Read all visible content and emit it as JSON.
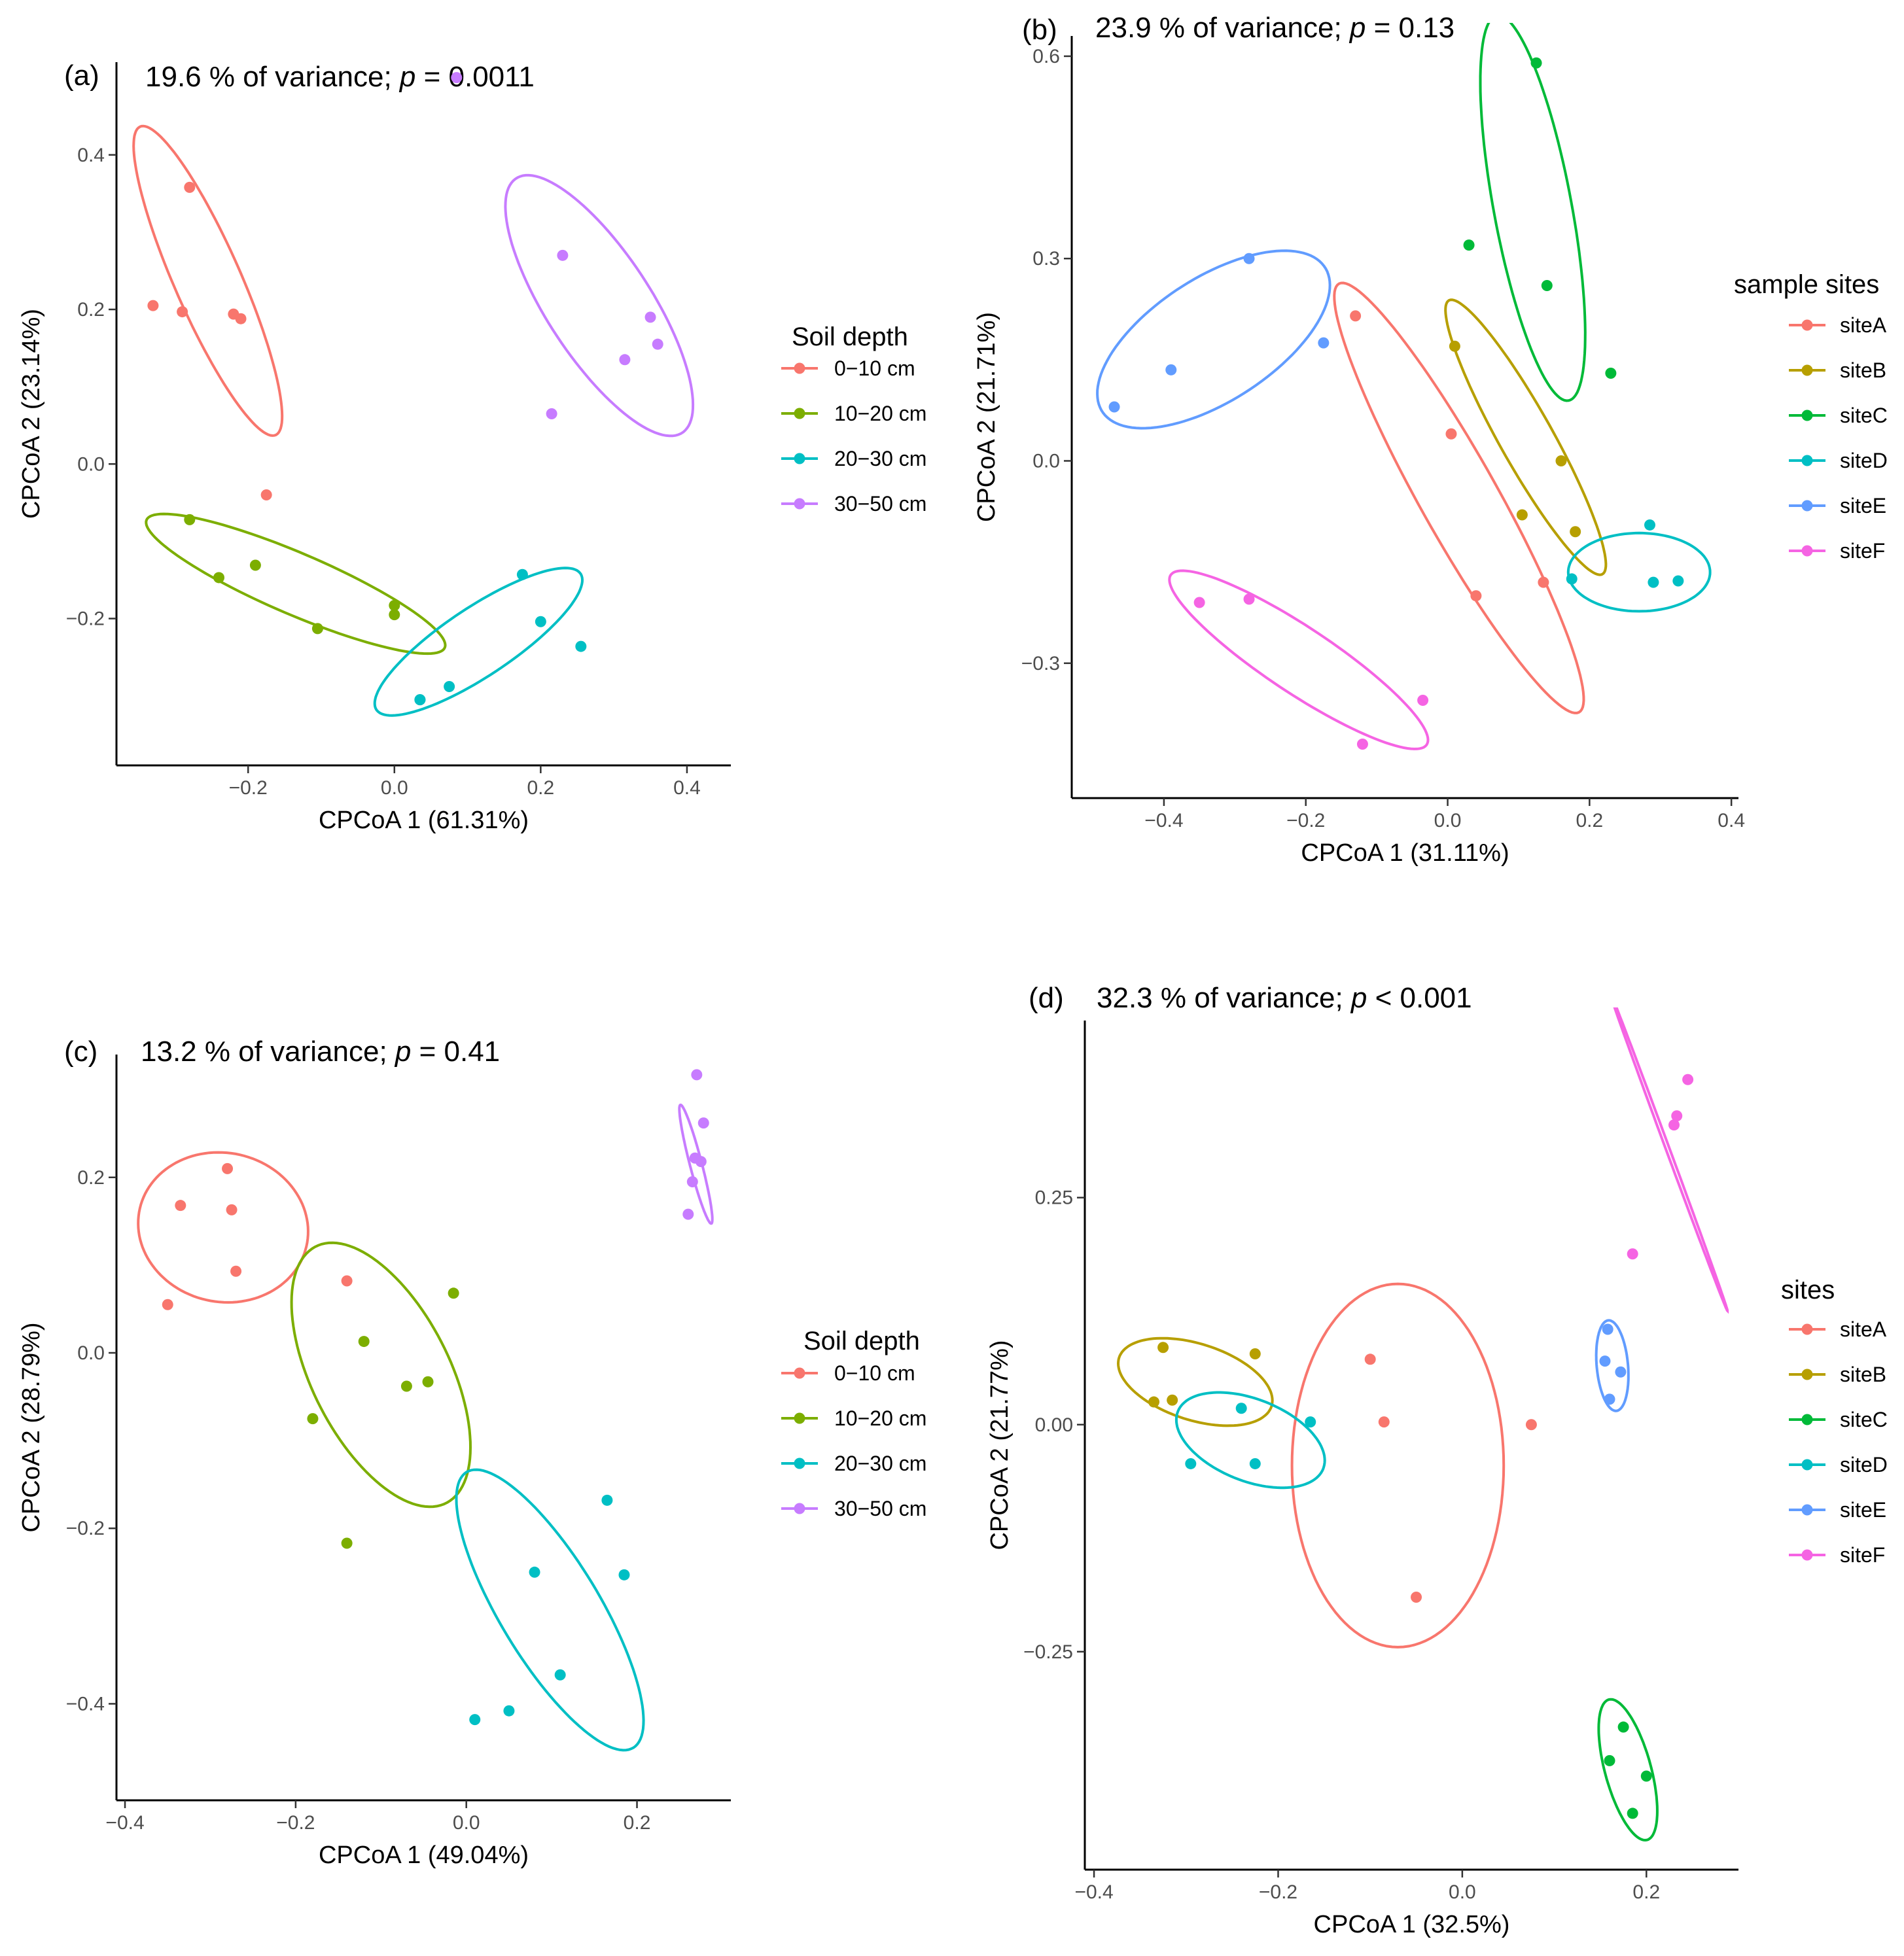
{
  "chart_data": [
    {
      "panel_label": "(a)",
      "title": "19.6 % of variance; p = 0.0011",
      "title_pre": "19.6 % of variance; ",
      "title_p": "p",
      "title_post": " = 0.0011",
      "type": "scatter",
      "xlabel": "CPCoA 1 (61.31%)",
      "ylabel": "CPCoA 2 (23.14%)",
      "xlim": [
        -0.38,
        0.46
      ],
      "ylim": [
        -0.39,
        0.52
      ],
      "xticks": [
        -0.2,
        0.0,
        0.2,
        0.4
      ],
      "xtick_labels": [
        "−0.2",
        "0.0",
        "0.2",
        "0.4"
      ],
      "yticks": [
        -0.2,
        0.0,
        0.2,
        0.4
      ],
      "ytick_labels": [
        "−0.2",
        "0.0",
        "0.2",
        "0.4"
      ],
      "legend_title": "Soil depth",
      "legend_position": "right",
      "series": [
        {
          "name": "0−10 cm",
          "color": "#F8766D",
          "points": [
            [
              -0.33,
              0.205
            ],
            [
              -0.29,
              0.197
            ],
            [
              -0.28,
              0.358
            ],
            [
              -0.22,
              0.194
            ],
            [
              -0.21,
              0.188
            ],
            [
              -0.175,
              -0.04
            ]
          ],
          "ellipse": {
            "cx": -0.255,
            "cy": 0.237,
            "rx": 0.22,
            "ry": 0.045,
            "angle_deg": -65
          }
        },
        {
          "name": "10−20 cm",
          "color": "#7CAE00",
          "points": [
            [
              -0.28,
              -0.072
            ],
            [
              -0.24,
              -0.147
            ],
            [
              -0.19,
              -0.131
            ],
            [
              -0.105,
              -0.213
            ],
            [
              0.0,
              -0.195
            ],
            [
              0.0,
              -0.183
            ]
          ],
          "ellipse": {
            "cx": -0.135,
            "cy": -0.155,
            "rx": 0.22,
            "ry": 0.04,
            "angle_deg": -22
          }
        },
        {
          "name": "20−30 cm",
          "color": "#00BFC4",
          "points": [
            [
              0.035,
              -0.305
            ],
            [
              0.035,
              -0.305
            ],
            [
              0.075,
              -0.288
            ],
            [
              0.175,
              -0.143
            ],
            [
              0.2,
              -0.204
            ],
            [
              0.255,
              -0.236
            ]
          ],
          "ellipse": {
            "cx": 0.115,
            "cy": -0.23,
            "rx": 0.165,
            "ry": 0.045,
            "angle_deg": 32
          }
        },
        {
          "name": "30−50 cm",
          "color": "#C77CFF",
          "points": [
            [
              0.085,
              0.5
            ],
            [
              0.215,
              0.065
            ],
            [
              0.23,
              0.27
            ],
            [
              0.315,
              0.135
            ],
            [
              0.35,
              0.19
            ],
            [
              0.36,
              0.155
            ]
          ],
          "ellipse": {
            "cx": 0.28,
            "cy": 0.205,
            "rx": 0.2,
            "ry": 0.07,
            "angle_deg": -55
          }
        }
      ]
    },
    {
      "panel_label": "(b)",
      "title": "23.9 % of variance; p = 0.13",
      "title_pre": "23.9 % of variance; ",
      "title_p": "p",
      "title_post": " = 0.13",
      "type": "scatter",
      "xlabel": "CPCoA 1 (31.11%)",
      "ylabel": "CPCoA 2 (21.71%)",
      "xlim": [
        -0.53,
        0.41
      ],
      "ylim": [
        -0.5,
        0.63
      ],
      "xticks": [
        -0.4,
        -0.2,
        0.0,
        0.2,
        0.4
      ],
      "xtick_labels": [
        "−0.4",
        "−0.2",
        "0.0",
        "0.2",
        "0.4"
      ],
      "yticks": [
        -0.3,
        0.0,
        0.3,
        0.6
      ],
      "ytick_labels": [
        "−0.3",
        "0.0",
        "0.3",
        "0.6"
      ],
      "legend_title": "sample sites",
      "legend_position": "right",
      "series": [
        {
          "name": "siteA",
          "color": "#F8766D",
          "points": [
            [
              -0.13,
              0.215
            ],
            [
              0.005,
              0.04
            ],
            [
              0.04,
              -0.2
            ],
            [
              0.135,
              -0.18
            ]
          ],
          "ellipse": {
            "cx": 0.016,
            "cy": -0.055,
            "rx": 0.36,
            "ry": 0.055,
            "angle_deg": -62
          }
        },
        {
          "name": "siteB",
          "color": "#B79F00",
          "points": [
            [
              0.01,
              0.17
            ],
            [
              0.105,
              -0.08
            ],
            [
              0.16,
              0.0
            ],
            [
              0.18,
              -0.105
            ]
          ],
          "ellipse": {
            "cx": 0.11,
            "cy": 0.035,
            "rx": 0.23,
            "ry": 0.038,
            "angle_deg": -62
          }
        },
        {
          "name": "siteC",
          "color": "#00BA38",
          "points": [
            [
              0.03,
              0.32
            ],
            [
              0.125,
              0.59
            ],
            [
              0.14,
              0.26
            ],
            [
              0.23,
              0.13
            ]
          ],
          "ellipse": {
            "cx": 0.12,
            "cy": 0.375,
            "rx": 0.29,
            "ry": 0.055,
            "angle_deg": -80
          }
        },
        {
          "name": "siteD",
          "color": "#00BFC4",
          "points": [
            [
              0.175,
              -0.175
            ],
            [
              0.285,
              -0.095
            ],
            [
              0.29,
              -0.18
            ],
            [
              0.325,
              -0.178
            ]
          ],
          "ellipse": {
            "cx": 0.27,
            "cy": -0.165,
            "rx": 0.1,
            "ry": 0.058,
            "angle_deg": 0
          }
        },
        {
          "name": "siteE",
          "color": "#619CFF",
          "points": [
            [
              -0.47,
              0.08
            ],
            [
              -0.39,
              0.135
            ],
            [
              -0.28,
              0.3
            ],
            [
              -0.175,
              0.175
            ]
          ],
          "ellipse": {
            "cx": -0.33,
            "cy": 0.18,
            "rx": 0.19,
            "ry": 0.09,
            "angle_deg": 35
          }
        },
        {
          "name": "siteF",
          "color": "#F564E3",
          "points": [
            [
              -0.35,
              -0.21
            ],
            [
              -0.28,
              -0.205
            ],
            [
              -0.12,
              -0.42
            ],
            [
              -0.035,
              -0.355
            ]
          ],
          "ellipse": {
            "cx": -0.21,
            "cy": -0.295,
            "rx": 0.22,
            "ry": 0.048,
            "angle_deg": -35
          }
        }
      ]
    },
    {
      "panel_label": "(c)",
      "title": "13.2 % of variance; p = 0.41",
      "title_pre": "13.2 % of variance; ",
      "title_p": "p",
      "title_post": " = 0.41",
      "type": "scatter",
      "xlabel": "CPCoA 1 (49.04%)",
      "ylabel": "CPCoA 2 (28.79%)",
      "xlim": [
        -0.41,
        0.31
      ],
      "ylim": [
        -0.51,
        0.34
      ],
      "xticks": [
        -0.4,
        -0.2,
        0.0,
        0.2
      ],
      "xtick_labels": [
        "−0.4",
        "−0.2",
        "0.0",
        "0.2"
      ],
      "yticks": [
        -0.4,
        -0.2,
        0.0,
        0.2
      ],
      "ytick_labels": [
        "−0.4",
        "−0.2",
        "0.0",
        "0.2"
      ],
      "legend_title": "Soil depth",
      "legend_position": "right",
      "series": [
        {
          "name": "0−10 cm",
          "color": "#F8766D",
          "points": [
            [
              -0.35,
              0.055
            ],
            [
              -0.335,
              0.168
            ],
            [
              -0.28,
              0.21
            ],
            [
              -0.275,
              0.163
            ],
            [
              -0.27,
              0.093
            ],
            [
              -0.14,
              0.082
            ]
          ],
          "ellipse": {
            "cx": -0.285,
            "cy": 0.143,
            "rx": 0.1,
            "ry": 0.085,
            "angle_deg": -10
          }
        },
        {
          "name": "10−20 cm",
          "color": "#7CAE00",
          "points": [
            [
              -0.18,
              -0.075
            ],
            [
              -0.14,
              -0.217
            ],
            [
              -0.12,
              0.013
            ],
            [
              -0.07,
              -0.038
            ],
            [
              -0.045,
              -0.033
            ],
            [
              -0.015,
              0.068
            ]
          ],
          "ellipse": {
            "cx": -0.1,
            "cy": -0.025,
            "rx": 0.165,
            "ry": 0.08,
            "angle_deg": -62
          }
        },
        {
          "name": "20−30 cm",
          "color": "#00BFC4",
          "points": [
            [
              0.01,
              -0.418
            ],
            [
              0.05,
              -0.408
            ],
            [
              0.08,
              -0.25
            ],
            [
              0.11,
              -0.367
            ],
            [
              0.165,
              -0.168
            ],
            [
              0.185,
              -0.253
            ]
          ],
          "ellipse": {
            "cx": 0.098,
            "cy": -0.293,
            "rx": 0.185,
            "ry": 0.058,
            "angle_deg": -58
          }
        },
        {
          "name": "30−50 cm",
          "color": "#C77CFF",
          "points": [
            [
              0.26,
              0.158
            ],
            [
              0.265,
              0.195
            ],
            [
              0.268,
              0.222
            ],
            [
              0.275,
              0.218
            ],
            [
              0.27,
              0.317
            ],
            [
              0.278,
              0.262
            ]
          ],
          "ellipse": {
            "cx": 0.269,
            "cy": 0.215,
            "rx": 0.07,
            "ry": 0.007,
            "angle_deg": -75
          }
        }
      ]
    },
    {
      "panel_label": "(d)",
      "title": "32.3 % of variance; p < 0.001",
      "title_pre": "32.3 % of variance; ",
      "title_p": "p",
      "title_post": " < 0.001",
      "type": "scatter",
      "xlabel": "CPCoA 1 (32.5%)",
      "ylabel": "CPCoA 2 (21.77%)",
      "xlim": [
        -0.41,
        0.3
      ],
      "ylim": [
        -0.49,
        0.445
      ],
      "xticks": [
        -0.4,
        -0.2,
        0.0,
        0.2
      ],
      "xtick_labels": [
        "−0.4",
        "−0.2",
        "0.0",
        "0.2"
      ],
      "yticks": [
        -0.25,
        0.0,
        0.25
      ],
      "ytick_labels": [
        "−0.25",
        "0.00",
        "0.25"
      ],
      "legend_title": "sites",
      "legend_position": "right",
      "series": [
        {
          "name": "siteA",
          "color": "#F8766D",
          "points": [
            [
              -0.1,
              0.072
            ],
            [
              -0.085,
              0.003
            ],
            [
              -0.05,
              -0.19
            ],
            [
              0.075,
              0.0
            ]
          ],
          "ellipse": {
            "cx": -0.07,
            "cy": -0.045,
            "rx": 0.115,
            "ry": 0.2,
            "angle_deg": 0
          }
        },
        {
          "name": "siteB",
          "color": "#B79F00",
          "points": [
            [
              -0.335,
              0.025
            ],
            [
              -0.325,
              0.085
            ],
            [
              -0.315,
              0.027
            ],
            [
              -0.225,
              0.078
            ]
          ],
          "ellipse": {
            "cx": -0.29,
            "cy": 0.047,
            "rx": 0.087,
            "ry": 0.042,
            "angle_deg": -18
          }
        },
        {
          "name": "siteC",
          "color": "#00BA38",
          "points": [
            [
              0.16,
              -0.37
            ],
            [
              0.175,
              -0.333
            ],
            [
              0.185,
              -0.428
            ],
            [
              0.2,
              -0.387
            ]
          ],
          "ellipse": {
            "cx": 0.18,
            "cy": -0.38,
            "rx": 0.08,
            "ry": 0.025,
            "angle_deg": -75
          }
        },
        {
          "name": "siteD",
          "color": "#00BFC4",
          "points": [
            [
              -0.295,
              -0.043
            ],
            [
              -0.24,
              0.018
            ],
            [
              -0.225,
              -0.043
            ],
            [
              -0.165,
              0.003
            ]
          ],
          "ellipse": {
            "cx": -0.23,
            "cy": -0.017,
            "rx": 0.085,
            "ry": 0.045,
            "angle_deg": -22
          }
        },
        {
          "name": "siteE",
          "color": "#619CFF",
          "points": [
            [
              0.155,
              0.07
            ],
            [
              0.158,
              0.105
            ],
            [
              0.16,
              0.028
            ],
            [
              0.172,
              0.058
            ]
          ],
          "ellipse": {
            "cx": 0.163,
            "cy": 0.065,
            "rx": 0.05,
            "ry": 0.017,
            "angle_deg": -85
          }
        },
        {
          "name": "siteF",
          "color": "#F564E3",
          "points": [
            [
              0.185,
              0.188
            ],
            [
              0.23,
              0.33
            ],
            [
              0.233,
              0.34
            ],
            [
              0.245,
              0.38
            ]
          ],
          "ellipse": {
            "cx": 0.223,
            "cy": 0.304,
            "rx": 0.19,
            "ry": 0.002,
            "angle_deg": -70
          }
        }
      ]
    }
  ]
}
